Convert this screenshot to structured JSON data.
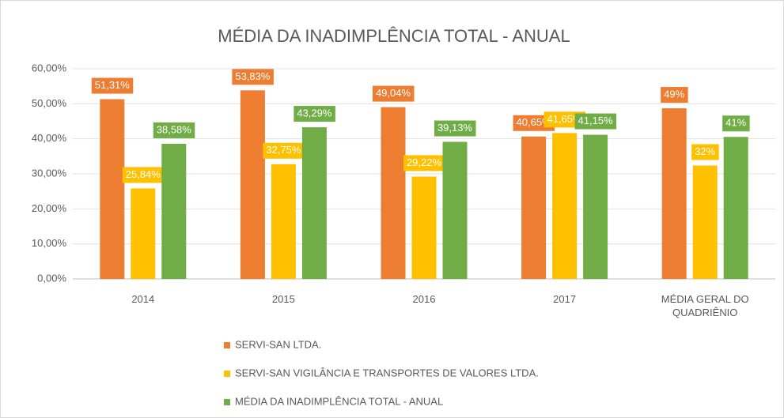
{
  "chart_data": {
    "type": "bar",
    "title": "MÉDIA DA INADIMPLÊNCIA TOTAL - ANUAL",
    "categories": [
      "2014",
      "2015",
      "2016",
      "2017",
      "MÉDIA GERAL DO QUADRIÊNIO"
    ],
    "series": [
      {
        "name": "SERVI-SAN LTDA.",
        "color": "#ed7d31",
        "values": [
          51.31,
          53.83,
          49.04,
          40.65,
          48.71
        ],
        "value_labels": [
          "51,31%",
          "53,83%",
          "49,04%",
          "40,65%",
          "49%"
        ]
      },
      {
        "name": "SERVI-SAN VIGILÂNCIA E TRANSPORTES DE VALORES LTDA.",
        "color": "#ffc000",
        "values": [
          25.84,
          32.75,
          29.22,
          41.65,
          32.37
        ],
        "value_labels": [
          "25,84%",
          "32,75%",
          "29,22%",
          "41,65%",
          "32%"
        ]
      },
      {
        "name": "MÉDIA DA INADIMPLÊNCIA TOTAL - ANUAL",
        "color": "#70ad47",
        "values": [
          38.58,
          43.29,
          39.13,
          41.15,
          40.54
        ],
        "value_labels": [
          "38,58%",
          "43,29%",
          "39,13%",
          "41,15%",
          "41%"
        ]
      }
    ],
    "ylim": [
      0,
      60
    ],
    "yticks": [
      {
        "value": 0,
        "label": "0,00%"
      },
      {
        "value": 10,
        "label": "10,00%"
      },
      {
        "value": 20,
        "label": "20,00%"
      },
      {
        "value": 30,
        "label": "30,00%"
      },
      {
        "value": 40,
        "label": "40,00%"
      },
      {
        "value": 50,
        "label": "50,00%"
      },
      {
        "value": 60,
        "label": "60,00%"
      }
    ],
    "grid": true
  }
}
